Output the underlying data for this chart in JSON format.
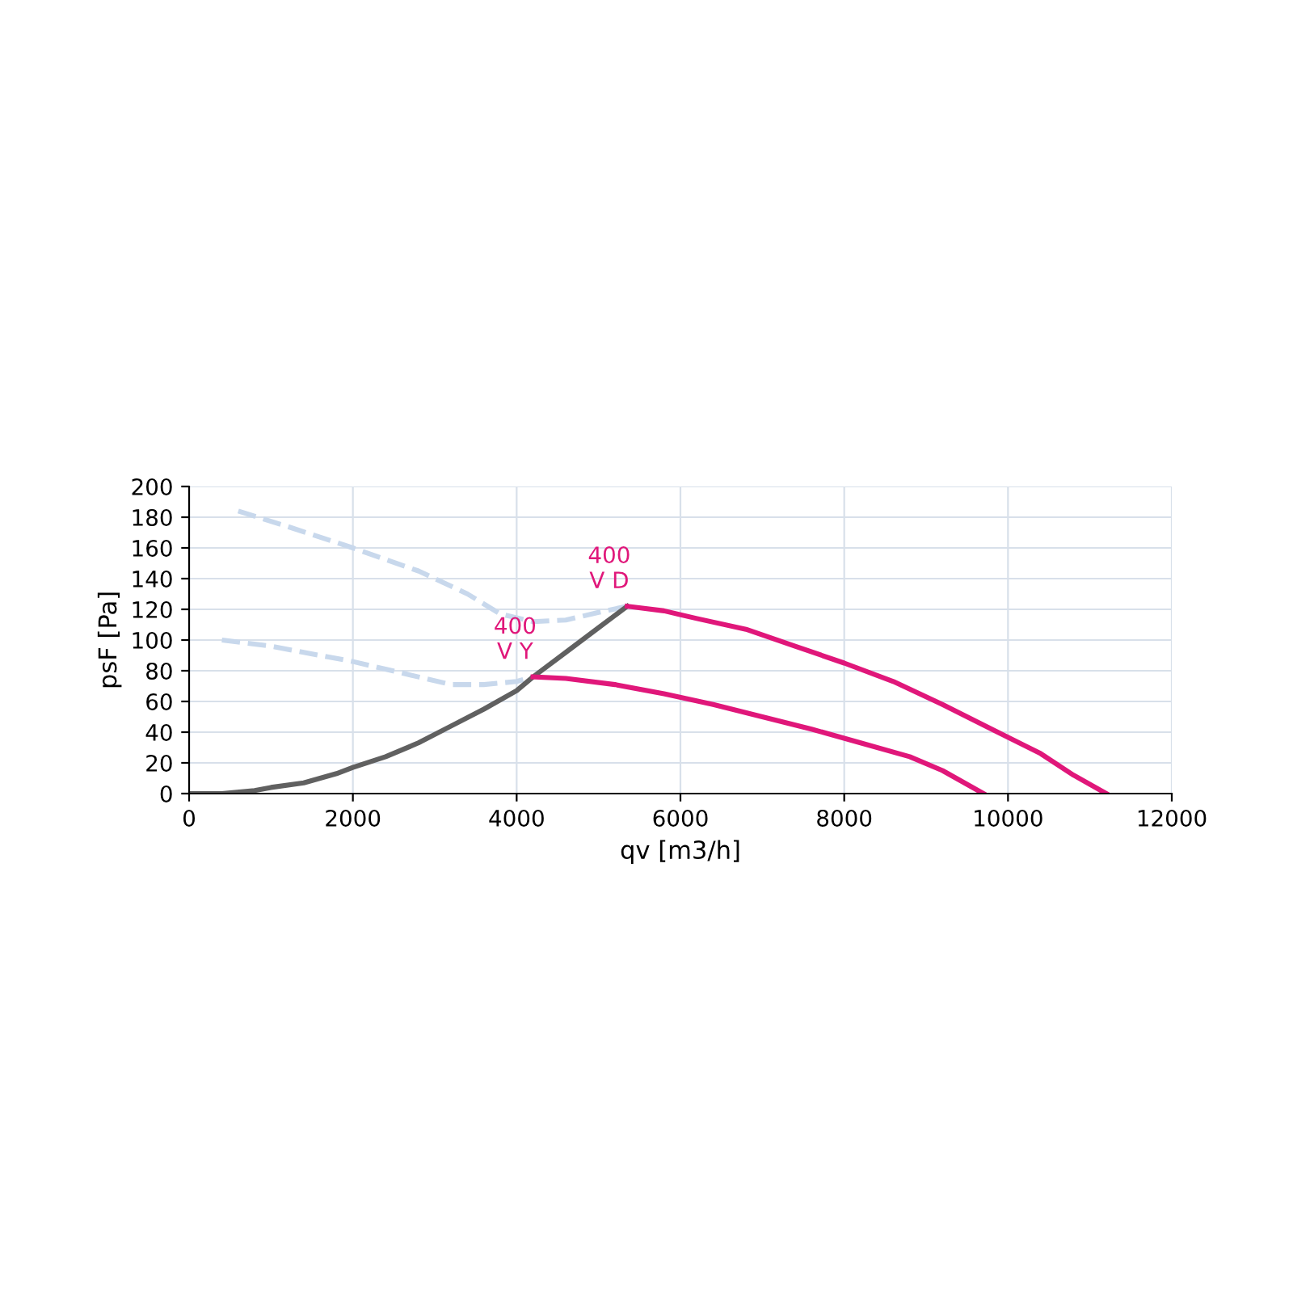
{
  "chart_data": {
    "type": "line",
    "xlabel": "qv [m3/h]",
    "ylabel": "psF [Pa]",
    "xlim": [
      0,
      12000
    ],
    "ylim": [
      0,
      200
    ],
    "xticks": [
      0,
      2000,
      4000,
      6000,
      8000,
      10000,
      12000
    ],
    "yticks": [
      0,
      20,
      40,
      60,
      80,
      100,
      120,
      140,
      160,
      180,
      200
    ],
    "grid": true,
    "marker": "none",
    "series": [
      {
        "color": "#c8d8ec",
        "line_style": "dashed",
        "x": [
          600,
          1200,
          2000,
          2800,
          3400,
          3800,
          4200,
          4600,
          5000,
          5350
        ],
        "values": [
          184,
          174,
          160,
          145,
          130,
          117,
          112,
          113,
          118,
          122
        ]
      },
      {
        "color": "#c8d8ec",
        "line_style": "dashed",
        "x": [
          400,
          1000,
          2000,
          2800,
          3200,
          3600,
          4000,
          4200
        ],
        "values": [
          100,
          96,
          86,
          76,
          71,
          71,
          73,
          76
        ]
      },
      {
        "color": "#606060",
        "line_style": "solid",
        "x": [
          0,
          400,
          800,
          1000,
          1400,
          1800,
          2000,
          2400,
          2800,
          3200,
          3600,
          4000,
          4200,
          4600,
          5000,
          5350
        ],
        "values": [
          0,
          0,
          2,
          4,
          7,
          13,
          17,
          24,
          33,
          44,
          55,
          67,
          76,
          92,
          108,
          122
        ]
      },
      {
        "color": "#e0177a",
        "line_style": "solid",
        "x": [
          5350,
          5800,
          6200,
          6800,
          7400,
          8000,
          8600,
          9200,
          9800,
          10400,
          10800,
          11200
        ],
        "values": [
          122,
          119,
          114,
          107,
          96,
          85,
          73,
          58,
          42,
          26,
          12,
          0
        ]
      },
      {
        "color": "#e0177a",
        "line_style": "solid",
        "x": [
          4200,
          4600,
          5200,
          5800,
          6400,
          7000,
          7600,
          8200,
          8800,
          9200,
          9700
        ],
        "values": [
          76,
          75,
          71,
          65,
          58,
          50,
          42,
          33,
          24,
          15,
          0
        ]
      }
    ],
    "annotations": [
      {
        "text": "400\nV D",
        "x": 5350,
        "y": 122
      },
      {
        "text": "400\nV Y",
        "x": 4200,
        "y": 76
      }
    ]
  }
}
